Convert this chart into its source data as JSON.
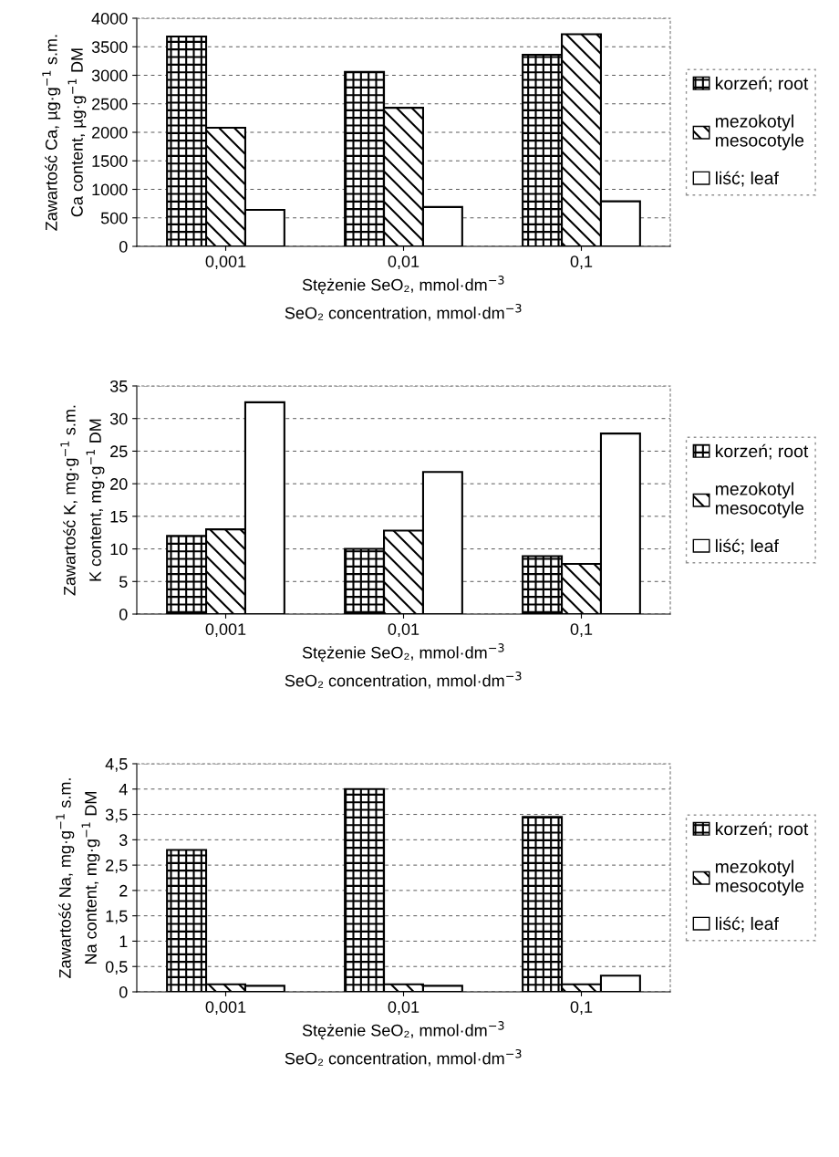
{
  "chart_data": [
    {
      "type": "bar",
      "categories": [
        "0,001",
        "0,01",
        "0,1"
      ],
      "xlabel": "Stężenie SeO₂, mmol·dm$^{−3}$\nSeO₂ concentration, mmol·dm$^{−3}$",
      "ylabel": "Zawartość Ca, µg·g$^{−1}$ s.m.\nCa content, µg·g$^{−1}$ DM",
      "ylim": [
        0,
        4000
      ],
      "yticks": [
        0,
        500,
        1000,
        1500,
        2000,
        2500,
        3000,
        3500,
        4000
      ],
      "grid": "y",
      "legend": "right",
      "series": [
        {
          "name": "korzeń; root",
          "color": "#000000",
          "values": [
            3680,
            3060,
            3360
          ]
        },
        {
          "name": "mezokotyl\nmesocotyle",
          "color": "#000000",
          "values": [
            2080,
            2430,
            3720
          ]
        },
        {
          "name": "liść; leaf",
          "color": "#ffffff",
          "values": [
            640,
            690,
            790
          ]
        }
      ]
    },
    {
      "type": "bar",
      "categories": [
        "0,001",
        "0,01",
        "0,1"
      ],
      "xlabel": "Stężenie SeO₂, mmol·dm$^{−3}$\nSeO₂ concentration, mmol·dm$^{−3}$",
      "ylabel": "Zawartość K, mg·g$^{−1}$ s.m.\nK content, mg·g$^{−1}$ DM",
      "ylim": [
        0,
        35
      ],
      "yticks": [
        0,
        5,
        10,
        15,
        20,
        25,
        30,
        35
      ],
      "grid": "y",
      "legend": "right",
      "series": [
        {
          "name": "korzeń; root",
          "color": "#000000",
          "values": [
            12,
            10,
            8.9
          ]
        },
        {
          "name": "mezokotyl\nmesocotyle",
          "color": "#000000",
          "values": [
            13,
            12.8,
            7.7
          ]
        },
        {
          "name": "liść; leaf",
          "color": "#ffffff",
          "values": [
            32.5,
            21.8,
            27.7
          ]
        }
      ]
    },
    {
      "type": "bar",
      "categories": [
        "0,001",
        "0,01",
        "0,1"
      ],
      "xlabel": "Stężenie SeO₂, mmol·dm$^{−3}$\nSeO₂ concentration, mmol·dm$^{−3}$",
      "ylabel": "Zawartość Na, mg·g$^{−1}$ s.m.\nNa content, mg·g$^{−1}$ DM",
      "ylim": [
        0,
        4.5
      ],
      "yticks": [
        0,
        {
          "value": 0.5,
          "label": "0,5"
        },
        1,
        {
          "value": 1.5,
          "label": "1,5"
        },
        2,
        {
          "value": 2.5,
          "label": "2,5"
        },
        3,
        {
          "value": 3.5,
          "label": "3,5"
        },
        4,
        {
          "value": 4.5,
          "label": "4,5"
        }
      ],
      "grid": "y",
      "legend": "right",
      "series": [
        {
          "name": "korzeń; root",
          "color": "#000000",
          "values": [
            2.8,
            4.0,
            3.45
          ]
        },
        {
          "name": "mezokotyl\nmesocotyle",
          "color": "#000000",
          "values": [
            0.15,
            0.15,
            0.15
          ]
        },
        {
          "name": "liść; leaf",
          "color": "#ffffff",
          "values": [
            0.12,
            0.12,
            0.32
          ]
        }
      ]
    }
  ]
}
